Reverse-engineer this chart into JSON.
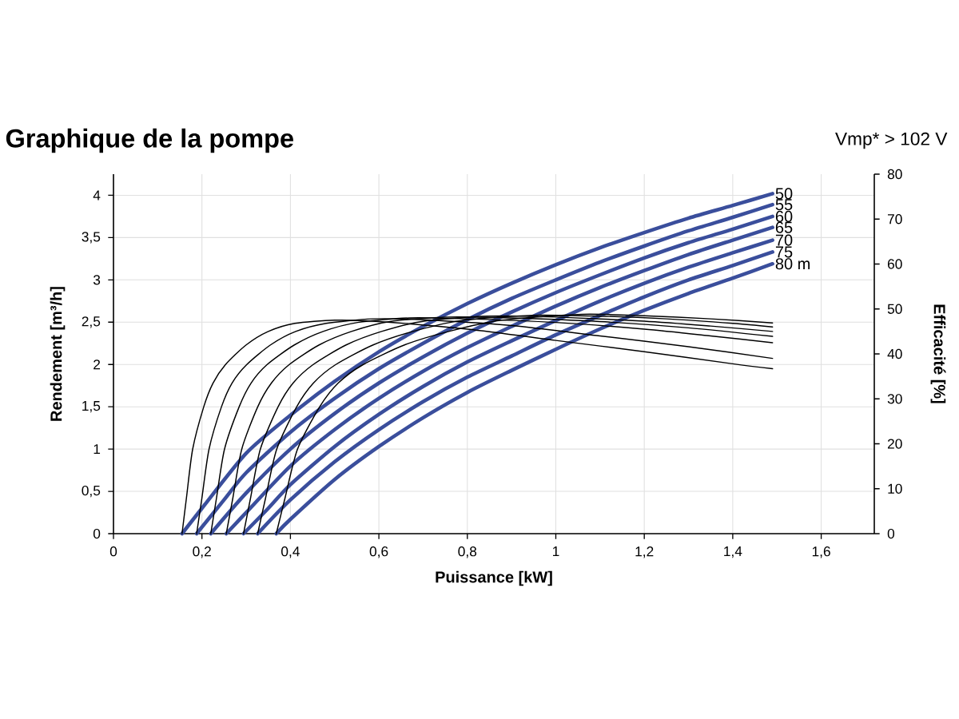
{
  "chart_data": {
    "type": "line",
    "title": "Graphique de la pompe",
    "annotations": [
      "Vmp* > 102 V"
    ],
    "xlabel": "Puissance [kW]",
    "ylabel": "Rendement [m³/h]",
    "y2label": "Efficacité [%]",
    "xlim": [
      0,
      1.72
    ],
    "xticks": [
      0,
      {
        "value": 0.2,
        "label": "0,2"
      },
      {
        "value": 0.4,
        "label": "0,4"
      },
      {
        "value": 0.6,
        "label": "0,6"
      },
      {
        "value": 0.8,
        "label": "0,8"
      },
      1,
      {
        "value": 1.2,
        "label": "1,2"
      },
      {
        "value": 1.4,
        "label": "1,4"
      },
      {
        "value": 1.6,
        "label": "1,6"
      }
    ],
    "ylim": [
      0,
      4.25
    ],
    "yticks": [
      0,
      {
        "value": 0.5,
        "label": "0,5"
      },
      1,
      {
        "value": 1.5,
        "label": "1,5"
      },
      2,
      {
        "value": 2.5,
        "label": "2,5"
      },
      3,
      {
        "value": 3.5,
        "label": "3,5"
      },
      4
    ],
    "y2lim": [
      0,
      80
    ],
    "y2ticks": [
      0,
      10,
      20,
      30,
      40,
      50,
      60,
      70,
      80
    ],
    "grid": true,
    "series": [
      {
        "name": "50",
        "color": "#3a4e9c",
        "x": [
          0.155,
          0.2,
          0.3,
          0.4,
          0.5,
          0.6,
          0.7,
          0.8,
          0.9,
          1.0,
          1.1,
          1.2,
          1.3,
          1.4,
          1.49
        ],
        "values": [
          0,
          0.3,
          0.95,
          1.4,
          1.8,
          2.15,
          2.45,
          2.72,
          2.96,
          3.18,
          3.38,
          3.56,
          3.73,
          3.88,
          4.02
        ]
      },
      {
        "name": "55",
        "color": "#3a4e9c",
        "x": [
          0.188,
          0.25,
          0.3,
          0.4,
          0.5,
          0.6,
          0.7,
          0.8,
          0.9,
          1.0,
          1.1,
          1.2,
          1.3,
          1.4,
          1.49
        ],
        "values": [
          0,
          0.4,
          0.72,
          1.2,
          1.6,
          1.95,
          2.25,
          2.53,
          2.78,
          3.0,
          3.21,
          3.4,
          3.58,
          3.74,
          3.89
        ]
      },
      {
        "name": "60",
        "color": "#3a4e9c",
        "x": [
          0.22,
          0.3,
          0.4,
          0.5,
          0.6,
          0.7,
          0.8,
          0.9,
          1.0,
          1.1,
          1.2,
          1.3,
          1.4,
          1.49
        ],
        "values": [
          0,
          0.48,
          1.0,
          1.42,
          1.78,
          2.09,
          2.37,
          2.62,
          2.85,
          3.06,
          3.26,
          3.44,
          3.6,
          3.75
        ]
      },
      {
        "name": "65",
        "color": "#3a4e9c",
        "x": [
          0.255,
          0.3,
          0.4,
          0.5,
          0.6,
          0.7,
          0.8,
          0.9,
          1.0,
          1.1,
          1.2,
          1.3,
          1.4,
          1.49
        ],
        "values": [
          0,
          0.25,
          0.8,
          1.23,
          1.6,
          1.92,
          2.2,
          2.45,
          2.69,
          2.91,
          3.11,
          3.3,
          3.47,
          3.62
        ]
      },
      {
        "name": "70",
        "color": "#3a4e9c",
        "x": [
          0.294,
          0.35,
          0.4,
          0.5,
          0.6,
          0.7,
          0.8,
          0.9,
          1.0,
          1.1,
          1.2,
          1.3,
          1.4,
          1.49
        ],
        "values": [
          0,
          0.3,
          0.58,
          1.03,
          1.41,
          1.74,
          2.03,
          2.28,
          2.52,
          2.75,
          2.96,
          3.15,
          3.32,
          3.47
        ]
      },
      {
        "name": "75",
        "color": "#3a4e9c",
        "x": [
          0.326,
          0.4,
          0.5,
          0.6,
          0.7,
          0.8,
          0.9,
          1.0,
          1.1,
          1.2,
          1.3,
          1.4,
          1.49
        ],
        "values": [
          0,
          0.4,
          0.85,
          1.23,
          1.56,
          1.85,
          2.1,
          2.35,
          2.58,
          2.8,
          3.0,
          3.17,
          3.33
        ]
      },
      {
        "name": "80 m",
        "color": "#3a4e9c",
        "x": [
          0.368,
          0.4,
          0.5,
          0.6,
          0.7,
          0.8,
          0.9,
          1.0,
          1.1,
          1.2,
          1.3,
          1.4,
          1.49
        ],
        "values": [
          0,
          0.17,
          0.64,
          1.03,
          1.37,
          1.67,
          1.93,
          2.18,
          2.42,
          2.64,
          2.84,
          3.02,
          3.19
        ]
      },
      {
        "axis": "y2",
        "color": "#000000",
        "x": [
          0.155,
          0.165,
          0.179,
          0.204,
          0.225,
          0.253,
          0.3,
          0.35,
          0.41,
          0.5,
          0.6,
          0.8,
          1.0,
          1.2,
          1.4,
          1.49
        ],
        "values": [
          0,
          8,
          18.8,
          28.2,
          33.5,
          37.6,
          42,
          45,
          46.8,
          47.5,
          47.2,
          45.5,
          43,
          40.5,
          37.8,
          36.7
        ]
      },
      {
        "axis": "y2",
        "color": "#000000",
        "x": [
          0.188,
          0.2,
          0.216,
          0.244,
          0.268,
          0.301,
          0.355,
          0.412,
          0.481,
          0.585,
          0.7,
          0.9,
          1.1,
          1.3,
          1.49
        ],
        "values": [
          0,
          8,
          18.8,
          28.2,
          33.5,
          37.6,
          42,
          45,
          46.8,
          47.8,
          47.6,
          46.3,
          44,
          41.6,
          39
        ]
      },
      {
        "axis": "y2",
        "color": "#000000",
        "x": [
          0.22,
          0.233,
          0.251,
          0.284,
          0.311,
          0.347,
          0.409,
          0.474,
          0.552,
          0.669,
          0.8,
          1.0,
          1.2,
          1.35,
          1.49
        ],
        "values": [
          0,
          8,
          18.8,
          28.2,
          33.5,
          37.6,
          42,
          45,
          47,
          48,
          47.8,
          47,
          45.5,
          44,
          42.5
        ]
      },
      {
        "axis": "y2",
        "color": "#000000",
        "x": [
          0.255,
          0.27,
          0.29,
          0.326,
          0.357,
          0.397,
          0.465,
          0.538,
          0.625,
          0.755,
          0.9,
          1.1,
          1.3,
          1.49
        ],
        "values": [
          0,
          8,
          18.8,
          28.2,
          33.5,
          37.6,
          42,
          45,
          47.2,
          48.2,
          48,
          47.2,
          45.8,
          43.9
        ]
      },
      {
        "axis": "y2",
        "color": "#000000",
        "x": [
          0.294,
          0.31,
          0.332,
          0.372,
          0.406,
          0.451,
          0.526,
          0.606,
          0.702,
          0.846,
          1.0,
          1.2,
          1.35,
          1.49
        ],
        "values": [
          0,
          8,
          18.8,
          28.2,
          33.5,
          37.6,
          42,
          45,
          47.3,
          48.4,
          48.2,
          47.3,
          46.2,
          45
        ]
      },
      {
        "axis": "y2",
        "color": "#000000",
        "x": [
          0.326,
          0.344,
          0.369,
          0.414,
          0.452,
          0.502,
          0.587,
          0.677,
          0.785,
          0.947,
          1.1,
          1.25,
          1.4,
          1.49
        ],
        "values": [
          0,
          8,
          18.8,
          28.2,
          33.5,
          37.6,
          42,
          45,
          47.4,
          48.6,
          48.4,
          47.8,
          46.8,
          46
        ]
      },
      {
        "axis": "y2",
        "color": "#000000",
        "x": [
          0.368,
          0.388,
          0.416,
          0.466,
          0.508,
          0.564,
          0.658,
          0.758,
          0.878,
          1.058,
          1.2,
          1.35,
          1.49
        ],
        "values": [
          0,
          8,
          18.8,
          28.2,
          33.5,
          37.6,
          42,
          45,
          47.5,
          48.8,
          48.5,
          47.8,
          46.9
        ]
      }
    ]
  }
}
